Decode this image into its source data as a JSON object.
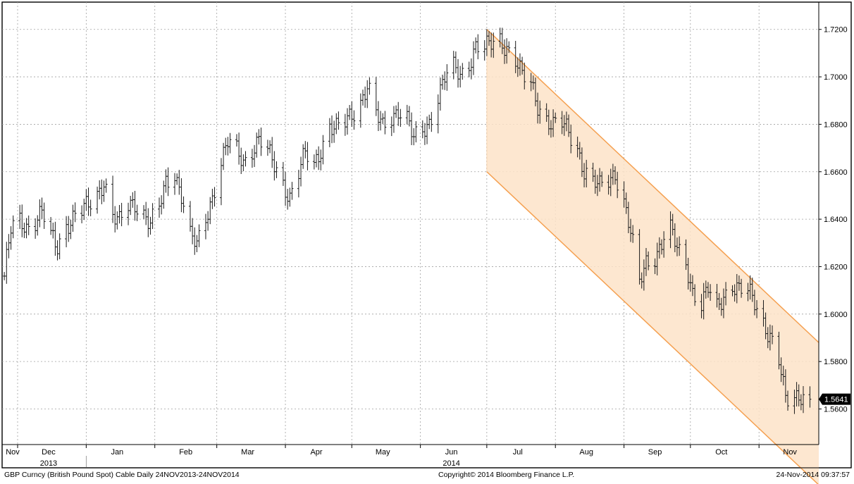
{
  "footer": {
    "security": "GBP Curncy (British Pound Spot) Cable  Daily 24NOV2013-24NOV2014",
    "copyright": "Copyright© 2014 Bloomberg Finance L.P.",
    "timestamp": "24-Nov-2014 09:37:57"
  },
  "colors": {
    "bars": "#1a1a1a",
    "channel_line": "#f5a050",
    "channel_fill": "#fde3c8",
    "grid": "#a0a0a0",
    "last_price_badge": "#000000"
  },
  "chart_data": {
    "type": "ohlc",
    "title": "",
    "grid": true,
    "y_axis_side": "right",
    "ylim": [
      1.545,
      1.7315
    ],
    "yticks": [
      1.56,
      1.58,
      1.6,
      1.62,
      1.64,
      1.66,
      1.68,
      1.7,
      1.72
    ],
    "ytick_labels": [
      "1.5600",
      "1.5800",
      "1.6000",
      "1.6200",
      "1.6400",
      "1.6600",
      "1.6800",
      "1.7000",
      "1.7200"
    ],
    "xlim": [
      "2013-11-24",
      "2014-11-28"
    ],
    "x_labels": [
      {
        "date": "2013-11-24",
        "label": "Nov",
        "sublabel": ""
      },
      {
        "date": "2013-12-15",
        "label": "Dec",
        "sublabel": "2013"
      },
      {
        "date": "2014-01-15",
        "label": "Jan",
        "sublabel": ""
      },
      {
        "date": "2014-02-15",
        "label": "Feb",
        "sublabel": ""
      },
      {
        "date": "2014-03-15",
        "label": "Mar",
        "sublabel": ""
      },
      {
        "date": "2014-04-15",
        "label": "Apr",
        "sublabel": ""
      },
      {
        "date": "2014-05-15",
        "label": "May",
        "sublabel": ""
      },
      {
        "date": "2014-06-15",
        "label": "Jun",
        "sublabel": "2014"
      },
      {
        "date": "2014-07-15",
        "label": "Jul",
        "sublabel": ""
      },
      {
        "date": "2014-08-15",
        "label": "Aug",
        "sublabel": ""
      },
      {
        "date": "2014-09-15",
        "label": "Sep",
        "sublabel": ""
      },
      {
        "date": "2014-10-15",
        "label": "Oct",
        "sublabel": ""
      },
      {
        "date": "2014-11-15",
        "label": "Nov",
        "sublabel": ""
      }
    ],
    "x_gridlines": [
      "2013-12-01",
      "2014-01-01",
      "2014-02-01",
      "2014-03-01",
      "2014-04-01",
      "2014-05-01",
      "2014-06-01",
      "2014-07-01",
      "2014-08-01",
      "2014-09-01",
      "2014-10-01",
      "2014-11-01"
    ],
    "series": [
      {
        "values": [
          [
            "2013-11-25",
            1.616
          ],
          [
            "2013-11-26",
            1.623
          ],
          [
            "2013-11-28",
            1.635
          ],
          [
            "2013-12-02",
            1.639
          ],
          [
            "2013-12-05",
            1.637
          ],
          [
            "2013-12-09",
            1.64
          ],
          [
            "2013-12-12",
            1.643
          ],
          [
            "2013-12-16",
            1.632
          ],
          [
            "2013-12-19",
            1.628
          ],
          [
            "2013-12-23",
            1.638
          ],
          [
            "2013-12-27",
            1.642
          ],
          [
            "2014-01-02",
            1.645
          ],
          [
            "2014-01-06",
            1.65
          ],
          [
            "2014-01-09",
            1.657
          ],
          [
            "2014-01-13",
            1.642
          ],
          [
            "2014-01-16",
            1.638
          ],
          [
            "2014-01-20",
            1.645
          ],
          [
            "2014-01-23",
            1.647
          ],
          [
            "2014-01-27",
            1.643
          ],
          [
            "2014-01-30",
            1.638
          ],
          [
            "2014-02-03",
            1.644
          ],
          [
            "2014-02-06",
            1.655
          ],
          [
            "2014-02-10",
            1.66
          ],
          [
            "2014-02-13",
            1.651
          ],
          [
            "2014-02-17",
            1.633
          ],
          [
            "2014-02-20",
            1.628
          ],
          [
            "2014-02-24",
            1.64
          ],
          [
            "2014-02-27",
            1.65
          ],
          [
            "2014-03-03",
            1.665
          ],
          [
            "2014-03-06",
            1.672
          ],
          [
            "2014-03-10",
            1.668
          ],
          [
            "2014-03-13",
            1.664
          ],
          [
            "2014-03-17",
            1.67
          ],
          [
            "2014-03-20",
            1.674
          ],
          [
            "2014-03-24",
            1.668
          ],
          [
            "2014-03-27",
            1.662
          ],
          [
            "2014-03-31",
            1.655
          ],
          [
            "2014-04-03",
            1.65
          ],
          [
            "2014-04-07",
            1.66
          ],
          [
            "2014-04-10",
            1.667
          ],
          [
            "2014-04-14",
            1.662
          ],
          [
            "2014-04-17",
            1.67
          ],
          [
            "2014-04-21",
            1.68
          ],
          [
            "2014-04-24",
            1.678
          ],
          [
            "2014-04-28",
            1.68
          ],
          [
            "2014-05-01",
            1.684
          ],
          [
            "2014-05-05",
            1.69
          ],
          [
            "2014-05-08",
            1.697
          ],
          [
            "2014-05-12",
            1.684
          ],
          [
            "2014-05-15",
            1.678
          ],
          [
            "2014-05-19",
            1.683
          ],
          [
            "2014-05-22",
            1.687
          ],
          [
            "2014-05-26",
            1.683
          ],
          [
            "2014-05-29",
            1.673
          ],
          [
            "2014-06-02",
            1.676
          ],
          [
            "2014-06-05",
            1.681
          ],
          [
            "2014-06-09",
            1.693
          ],
          [
            "2014-06-12",
            1.7
          ],
          [
            "2014-06-16",
            1.703
          ],
          [
            "2014-06-19",
            1.7
          ],
          [
            "2014-06-23",
            1.706
          ],
          [
            "2014-06-26",
            1.714
          ],
          [
            "2014-06-30",
            1.712
          ],
          [
            "2014-07-03",
            1.713
          ],
          [
            "2014-07-07",
            1.715
          ],
          [
            "2014-07-10",
            1.713
          ],
          [
            "2014-07-14",
            1.708
          ],
          [
            "2014-07-17",
            1.7
          ],
          [
            "2014-07-21",
            1.696
          ],
          [
            "2014-07-24",
            1.688
          ],
          [
            "2014-07-28",
            1.683
          ],
          [
            "2014-07-31",
            1.68
          ],
          [
            "2014-08-04",
            1.68
          ],
          [
            "2014-08-07",
            1.676
          ],
          [
            "2014-08-11",
            1.67
          ],
          [
            "2014-08-14",
            1.661
          ],
          [
            "2014-08-18",
            1.656
          ],
          [
            "2014-08-21",
            1.653
          ],
          [
            "2014-08-25",
            1.656
          ],
          [
            "2014-08-28",
            1.66
          ],
          [
            "2014-09-01",
            1.648
          ],
          [
            "2014-09-04",
            1.634
          ],
          [
            "2014-09-08",
            1.612
          ],
          [
            "2014-09-11",
            1.622
          ],
          [
            "2014-09-15",
            1.625
          ],
          [
            "2014-09-18",
            1.63
          ],
          [
            "2014-09-21",
            1.638
          ],
          [
            "2014-09-25",
            1.627
          ],
          [
            "2014-09-29",
            1.622
          ],
          [
            "2014-10-02",
            1.61
          ],
          [
            "2014-10-06",
            1.604
          ],
          [
            "2014-10-09",
            1.61
          ],
          [
            "2014-10-13",
            1.602
          ],
          [
            "2014-10-16",
            1.608
          ],
          [
            "2014-10-20",
            1.613
          ],
          [
            "2014-10-23",
            1.61
          ],
          [
            "2014-10-27",
            1.609
          ],
          [
            "2014-10-30",
            1.605
          ],
          [
            "2014-11-03",
            1.597
          ],
          [
            "2014-11-06",
            1.591
          ],
          [
            "2014-11-10",
            1.58
          ],
          [
            "2014-11-13",
            1.563
          ],
          [
            "2014-11-17",
            1.565
          ],
          [
            "2014-11-20",
            1.567
          ],
          [
            "2014-11-24",
            1.5641
          ]
        ]
      }
    ],
    "channel": {
      "upper": [
        [
          "2014-07-01",
          1.72
        ],
        [
          "2014-11-28",
          1.588
        ]
      ],
      "lower": [
        [
          "2014-07-01",
          1.66
        ],
        [
          "2014-11-28",
          1.528
        ]
      ]
    },
    "last_price": 1.5641,
    "last_price_label": "1.5641"
  }
}
